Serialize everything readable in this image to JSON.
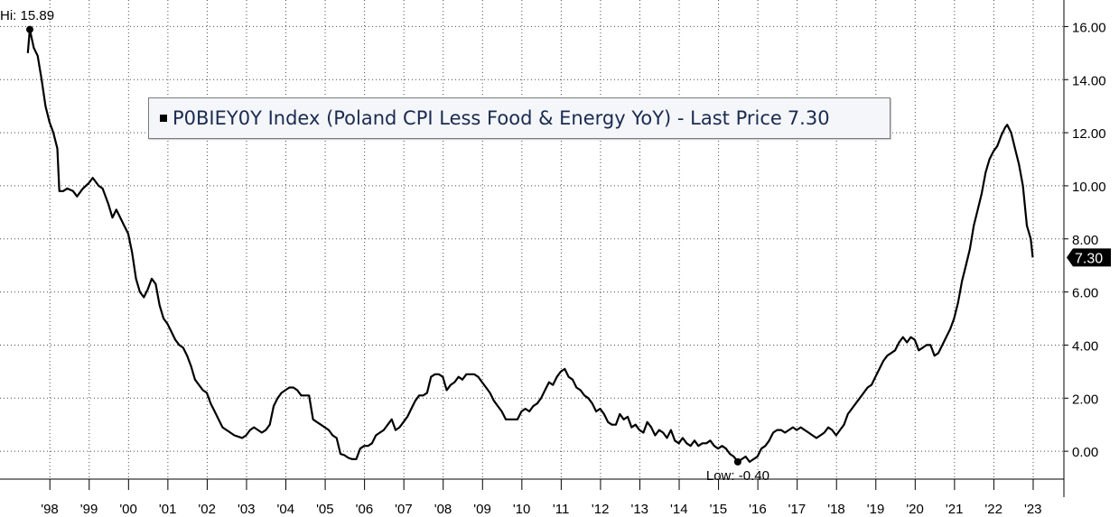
{
  "chart_data": {
    "type": "line",
    "series": [
      {
        "name": "P0BIEY0Y Index (Poland CPI Less Food & Energy YoY) - Last Price",
        "color": "#000000",
        "points": [
          [
            1997.95,
            15.0
          ],
          [
            1998.0,
            15.89
          ],
          [
            1998.1,
            15.2
          ],
          [
            1998.2,
            14.9
          ],
          [
            1998.3,
            14.0
          ],
          [
            1998.4,
            13.0
          ],
          [
            1998.5,
            12.4
          ],
          [
            1998.6,
            12.0
          ],
          [
            1998.7,
            11.4
          ],
          [
            1998.75,
            9.8
          ],
          [
            1998.85,
            9.8
          ],
          [
            1998.95,
            9.9
          ],
          [
            1999.1,
            9.8
          ],
          [
            1999.2,
            9.6
          ],
          [
            1999.35,
            9.9
          ],
          [
            1999.5,
            10.1
          ],
          [
            1999.6,
            10.3
          ],
          [
            1999.75,
            10.0
          ],
          [
            1999.85,
            9.9
          ],
          [
            2000.0,
            9.3
          ],
          [
            2000.1,
            8.8
          ],
          [
            2000.2,
            9.1
          ],
          [
            2000.3,
            8.8
          ],
          [
            2000.4,
            8.5
          ],
          [
            2000.5,
            8.2
          ],
          [
            2000.6,
            7.5
          ],
          [
            2000.7,
            6.5
          ],
          [
            2000.8,
            6.0
          ],
          [
            2000.9,
            5.8
          ],
          [
            2001.0,
            6.1
          ],
          [
            2001.1,
            6.5
          ],
          [
            2001.2,
            6.3
          ],
          [
            2001.3,
            5.5
          ],
          [
            2001.4,
            5.0
          ],
          [
            2001.5,
            4.8
          ],
          [
            2001.6,
            4.5
          ],
          [
            2001.7,
            4.2
          ],
          [
            2001.8,
            4.0
          ],
          [
            2001.9,
            3.9
          ],
          [
            2002.0,
            3.6
          ],
          [
            2002.1,
            3.2
          ],
          [
            2002.2,
            2.7
          ],
          [
            2002.3,
            2.5
          ],
          [
            2002.4,
            2.3
          ],
          [
            2002.5,
            2.2
          ],
          [
            2002.6,
            1.8
          ],
          [
            2002.7,
            1.5
          ],
          [
            2002.8,
            1.2
          ],
          [
            2002.9,
            0.9
          ],
          [
            2003.0,
            0.8
          ],
          [
            2003.1,
            0.7
          ],
          [
            2003.2,
            0.6
          ],
          [
            2003.3,
            0.55
          ],
          [
            2003.4,
            0.5
          ],
          [
            2003.5,
            0.6
          ],
          [
            2003.6,
            0.8
          ],
          [
            2003.7,
            0.9
          ],
          [
            2003.8,
            0.8
          ],
          [
            2003.9,
            0.7
          ],
          [
            2004.0,
            0.8
          ],
          [
            2004.1,
            1.0
          ],
          [
            2004.2,
            1.7
          ],
          [
            2004.3,
            2.0
          ],
          [
            2004.4,
            2.2
          ],
          [
            2004.5,
            2.3
          ],
          [
            2004.6,
            2.4
          ],
          [
            2004.7,
            2.4
          ],
          [
            2004.8,
            2.3
          ],
          [
            2004.9,
            2.1
          ],
          [
            2005.0,
            2.1
          ],
          [
            2005.1,
            2.1
          ],
          [
            2005.2,
            1.2
          ],
          [
            2005.3,
            1.1
          ],
          [
            2005.4,
            1.0
          ],
          [
            2005.5,
            0.9
          ],
          [
            2005.6,
            0.8
          ],
          [
            2005.7,
            0.6
          ],
          [
            2005.8,
            0.5
          ],
          [
            2005.9,
            -0.1
          ],
          [
            2006.0,
            -0.15
          ],
          [
            2006.1,
            -0.25
          ],
          [
            2006.2,
            -0.3
          ],
          [
            2006.3,
            -0.3
          ],
          [
            2006.4,
            0.1
          ],
          [
            2006.5,
            0.2
          ],
          [
            2006.6,
            0.2
          ],
          [
            2006.7,
            0.3
          ],
          [
            2006.8,
            0.6
          ],
          [
            2006.9,
            0.7
          ],
          [
            2007.0,
            0.8
          ],
          [
            2007.1,
            1.0
          ],
          [
            2007.2,
            1.2
          ],
          [
            2007.3,
            0.8
          ],
          [
            2007.4,
            0.9
          ],
          [
            2007.5,
            1.1
          ],
          [
            2007.6,
            1.3
          ],
          [
            2007.7,
            1.6
          ],
          [
            2007.8,
            1.9
          ],
          [
            2007.9,
            2.1
          ],
          [
            2008.0,
            2.1
          ],
          [
            2008.1,
            2.2
          ],
          [
            2008.2,
            2.8
          ],
          [
            2008.3,
            2.9
          ],
          [
            2008.4,
            2.9
          ],
          [
            2008.5,
            2.8
          ],
          [
            2008.6,
            2.3
          ],
          [
            2008.7,
            2.5
          ],
          [
            2008.8,
            2.6
          ],
          [
            2008.9,
            2.8
          ],
          [
            2009.0,
            2.7
          ],
          [
            2009.1,
            2.9
          ],
          [
            2009.2,
            2.9
          ],
          [
            2009.3,
            2.9
          ],
          [
            2009.4,
            2.8
          ],
          [
            2009.5,
            2.6
          ],
          [
            2009.6,
            2.4
          ],
          [
            2009.7,
            2.2
          ],
          [
            2009.8,
            1.9
          ],
          [
            2009.9,
            1.7
          ],
          [
            2010.0,
            1.5
          ],
          [
            2010.1,
            1.2
          ],
          [
            2010.2,
            1.2
          ],
          [
            2010.3,
            1.2
          ],
          [
            2010.4,
            1.2
          ],
          [
            2010.5,
            1.5
          ],
          [
            2010.6,
            1.6
          ],
          [
            2010.7,
            1.5
          ],
          [
            2010.8,
            1.7
          ],
          [
            2010.9,
            1.8
          ],
          [
            2011.0,
            2.0
          ],
          [
            2011.1,
            2.3
          ],
          [
            2011.2,
            2.6
          ],
          [
            2011.3,
            2.5
          ],
          [
            2011.4,
            2.8
          ],
          [
            2011.5,
            3.0
          ],
          [
            2011.6,
            3.1
          ],
          [
            2011.7,
            2.8
          ],
          [
            2011.8,
            2.7
          ],
          [
            2011.9,
            2.4
          ],
          [
            2012.0,
            2.3
          ],
          [
            2012.1,
            2.1
          ],
          [
            2012.2,
            2.0
          ],
          [
            2012.3,
            1.8
          ],
          [
            2012.4,
            1.5
          ],
          [
            2012.5,
            1.6
          ],
          [
            2012.6,
            1.4
          ],
          [
            2012.7,
            1.1
          ],
          [
            2012.8,
            1.0
          ],
          [
            2012.9,
            1.0
          ],
          [
            2013.0,
            1.4
          ],
          [
            2013.1,
            1.2
          ],
          [
            2013.2,
            1.3
          ],
          [
            2013.3,
            0.9
          ],
          [
            2013.4,
            1.0
          ],
          [
            2013.5,
            0.8
          ],
          [
            2013.6,
            0.7
          ],
          [
            2013.7,
            1.1
          ],
          [
            2013.8,
            0.9
          ],
          [
            2013.9,
            0.6
          ],
          [
            2014.0,
            0.8
          ],
          [
            2014.1,
            0.7
          ],
          [
            2014.2,
            0.5
          ],
          [
            2014.3,
            0.8
          ],
          [
            2014.4,
            0.4
          ],
          [
            2014.5,
            0.3
          ],
          [
            2014.6,
            0.5
          ],
          [
            2014.7,
            0.3
          ],
          [
            2014.8,
            0.2
          ],
          [
            2014.9,
            0.4
          ],
          [
            2015.0,
            0.2
          ],
          [
            2015.1,
            0.3
          ],
          [
            2015.2,
            0.3
          ],
          [
            2015.3,
            0.4
          ],
          [
            2015.4,
            0.2
          ],
          [
            2015.5,
            0.1
          ],
          [
            2015.6,
            0.2
          ],
          [
            2015.7,
            0.1
          ],
          [
            2015.8,
            -0.1
          ],
          [
            2015.9,
            -0.2
          ],
          [
            2016.0,
            -0.4
          ],
          [
            2016.1,
            -0.3
          ],
          [
            2016.2,
            -0.2
          ],
          [
            2016.3,
            -0.4
          ],
          [
            2016.4,
            -0.3
          ],
          [
            2016.5,
            -0.2
          ],
          [
            2016.6,
            0.1
          ],
          [
            2016.7,
            0.2
          ],
          [
            2016.8,
            0.4
          ],
          [
            2016.9,
            0.7
          ],
          [
            2017.0,
            0.8
          ],
          [
            2017.1,
            0.8
          ],
          [
            2017.2,
            0.7
          ],
          [
            2017.3,
            0.8
          ],
          [
            2017.4,
            0.9
          ],
          [
            2017.5,
            0.8
          ],
          [
            2017.6,
            0.9
          ],
          [
            2017.7,
            0.8
          ],
          [
            2017.8,
            0.7
          ],
          [
            2017.9,
            0.6
          ],
          [
            2018.0,
            0.5
          ],
          [
            2018.1,
            0.6
          ],
          [
            2018.2,
            0.7
          ],
          [
            2018.3,
            0.9
          ],
          [
            2018.4,
            0.8
          ],
          [
            2018.5,
            0.6
          ],
          [
            2018.6,
            0.8
          ],
          [
            2018.7,
            1.0
          ],
          [
            2018.8,
            1.4
          ],
          [
            2018.9,
            1.6
          ],
          [
            2019.0,
            1.8
          ],
          [
            2019.1,
            2.0
          ],
          [
            2019.2,
            2.2
          ],
          [
            2019.3,
            2.4
          ],
          [
            2019.4,
            2.5
          ],
          [
            2019.5,
            2.8
          ],
          [
            2019.6,
            3.1
          ],
          [
            2019.7,
            3.4
          ],
          [
            2019.8,
            3.6
          ],
          [
            2019.9,
            3.7
          ],
          [
            2020.0,
            3.8
          ],
          [
            2020.1,
            4.1
          ],
          [
            2020.2,
            4.3
          ],
          [
            2020.3,
            4.1
          ],
          [
            2020.4,
            4.3
          ],
          [
            2020.5,
            4.2
          ],
          [
            2020.6,
            3.8
          ],
          [
            2020.7,
            3.9
          ],
          [
            2020.8,
            4.0
          ],
          [
            2020.9,
            4.0
          ],
          [
            2021.0,
            3.6
          ],
          [
            2021.1,
            3.7
          ],
          [
            2021.2,
            4.0
          ],
          [
            2021.3,
            4.3
          ],
          [
            2021.4,
            4.6
          ],
          [
            2021.5,
            5.0
          ],
          [
            2021.6,
            5.6
          ],
          [
            2021.7,
            6.4
          ],
          [
            2021.8,
            7.0
          ],
          [
            2021.9,
            7.6
          ],
          [
            2022.0,
            8.5
          ],
          [
            2022.1,
            9.1
          ],
          [
            2022.2,
            9.7
          ],
          [
            2022.3,
            10.5
          ],
          [
            2022.4,
            11.0
          ],
          [
            2022.5,
            11.3
          ],
          [
            2022.6,
            11.5
          ],
          [
            2022.7,
            11.9
          ],
          [
            2022.8,
            12.2
          ],
          [
            2022.85,
            12.3
          ],
          [
            2022.95,
            12.0
          ],
          [
            2023.05,
            11.4
          ],
          [
            2023.15,
            10.8
          ],
          [
            2023.25,
            10.0
          ],
          [
            2023.35,
            8.5
          ],
          [
            2023.45,
            8.0
          ],
          [
            2023.5,
            7.3
          ]
        ]
      }
    ],
    "x_ticks": [
      "'98",
      "'99",
      "'00",
      "'01",
      "'02",
      "'03",
      "'04",
      "'05",
      "'06",
      "'07",
      "'08",
      "'09",
      "'10",
      "'11",
      "'12",
      "'13",
      "'14",
      "'15",
      "'16",
      "'17",
      "'18",
      "'19",
      "'20",
      "'21",
      "'22",
      "'23"
    ],
    "y_ticks": [
      "0.00",
      "2.00",
      "4.00",
      "6.00",
      "8.00",
      "10.00",
      "12.00",
      "14.00",
      "16.00"
    ],
    "ylim": [
      -1.05,
      17.0
    ],
    "y_axis_position": "right",
    "grid": true,
    "legend_position": "top-center",
    "annotations": {
      "high": {
        "label": "Hi: 15.89",
        "x": 1998.0,
        "y": 15.89
      },
      "low": {
        "label": "Low: -0.40",
        "x": 2016.0,
        "y": -0.4
      }
    },
    "legend": {
      "name": "P0BIEY0Y Index (Poland CPI Less Food & Energy YoY) - Last Price",
      "value": "7.30"
    },
    "last_price_label": "7.30"
  }
}
